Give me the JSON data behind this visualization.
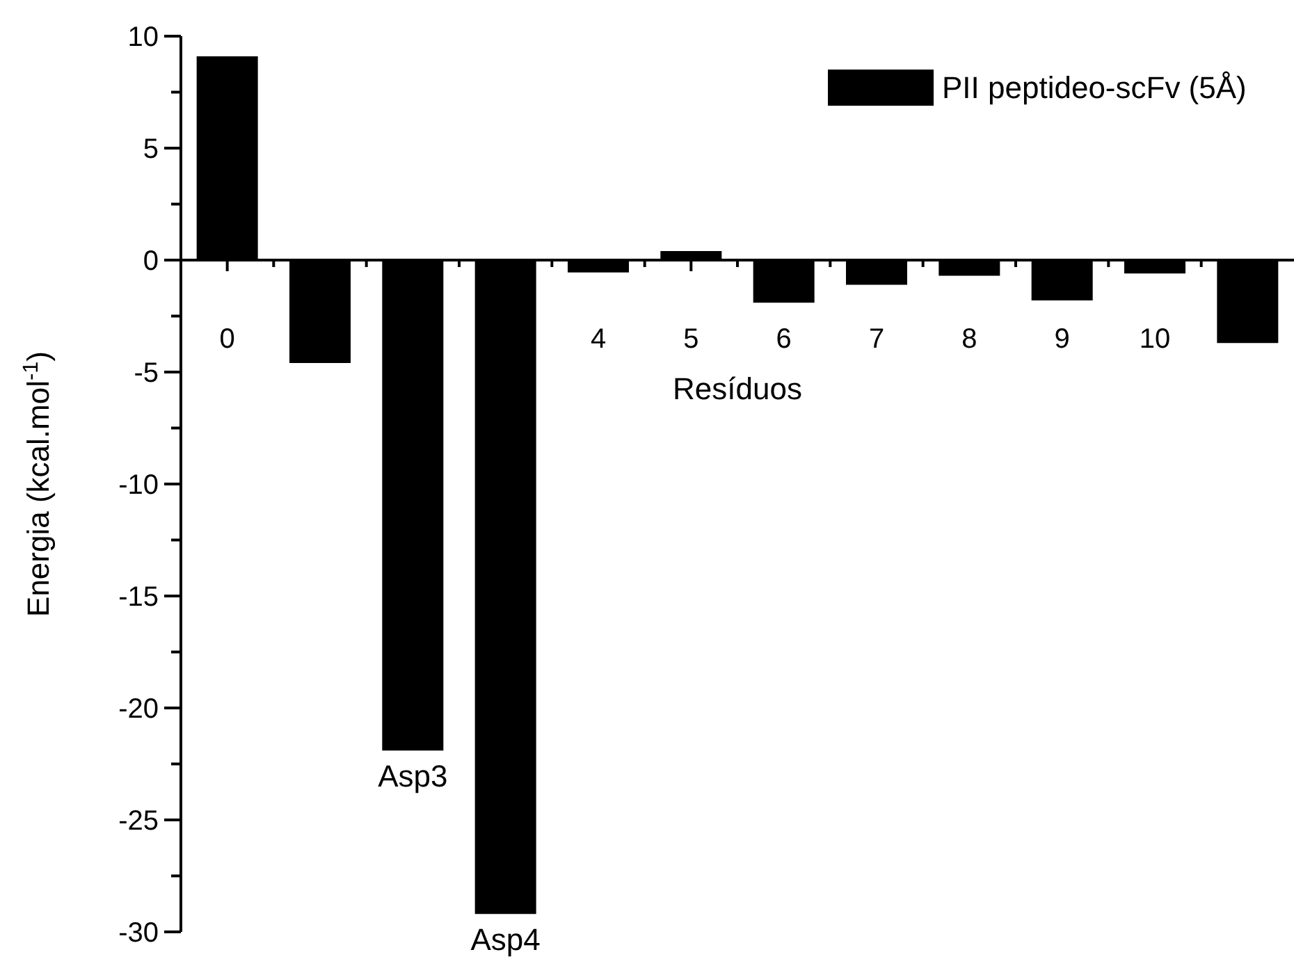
{
  "chart_data": {
    "type": "bar",
    "xlabel": "Resíduos",
    "ylabel": "Energia (kcal.mol$^{-1}$)",
    "categories": [
      "0",
      null,
      null,
      null,
      "4",
      "5",
      "6",
      "7",
      "8",
      "9",
      "10",
      null
    ],
    "series": [
      {
        "name": "PII peptideo-scFv (5Å)",
        "color": "#000000",
        "values": [
          9.1,
          -4.6,
          -21.9,
          -29.2,
          -0.55,
          0.4,
          -1.9,
          -1.1,
          -0.7,
          -1.8,
          -0.6,
          -3.7
        ]
      }
    ],
    "ylim": [
      -30,
      10
    ],
    "yticks": [
      -30,
      {
        "value": -27.5,
        "label": null
      },
      -25,
      {
        "value": -22.5,
        "label": null
      },
      -20,
      {
        "value": -17.5,
        "label": null
      },
      -15,
      {
        "value": -12.5,
        "label": null
      },
      -10,
      {
        "value": -7.5,
        "label": null
      },
      -5,
      {
        "value": -2.5,
        "label": null
      },
      0,
      {
        "value": 2.5,
        "label": null
      },
      5,
      {
        "value": 7.5,
        "label": null
      },
      10
    ],
    "annotations": [
      "Asp3",
      "Asp4"
    ],
    "legend": "top right"
  }
}
